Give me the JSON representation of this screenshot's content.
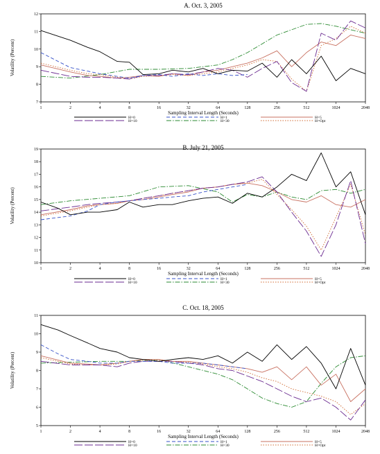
{
  "chart_data": [
    {
      "type": "line",
      "title": "A. Oct. 3, 2005",
      "xlabel": "Sampling Interval Length (Seconds)",
      "ylabel": "Volatility (Percent)",
      "x_scale": "log2",
      "xlim": [
        1,
        2048
      ],
      "ylim": [
        7,
        12
      ],
      "xticks": [
        "1",
        "2",
        "4",
        "8",
        "16",
        "32",
        "64",
        "128",
        "256",
        "512",
        "1024",
        "2048"
      ],
      "yticks": [
        "7",
        "8",
        "9",
        "10",
        "11",
        "12"
      ],
      "series": [
        {
          "name": "H=0",
          "color": "#000000",
          "dash": "",
          "x": [
            1,
            2,
            3,
            4,
            6,
            8,
            11,
            16,
            22,
            32,
            45,
            64,
            90,
            128,
            181,
            256,
            362,
            512,
            724,
            1024,
            1448,
            2048
          ],
          "y": [
            11.05,
            10.5,
            10.1,
            9.85,
            9.3,
            9.25,
            8.55,
            8.6,
            8.8,
            8.7,
            8.9,
            8.6,
            8.8,
            8.75,
            9.2,
            8.4,
            9.4,
            8.6,
            9.6,
            8.2,
            8.9,
            8.6
          ]
        },
        {
          "name": "H=1",
          "color": "#3550c8",
          "dash": "5,3",
          "x": [
            1,
            1.5,
            2,
            3,
            4,
            6,
            8,
            11,
            16,
            22,
            32,
            45,
            64,
            90,
            128
          ],
          "y": [
            9.8,
            9.3,
            8.95,
            8.75,
            8.6,
            8.45,
            8.35,
            8.5,
            8.55,
            8.45,
            8.6,
            8.5,
            8.6,
            8.5,
            8.55
          ]
        },
        {
          "name": "H=5",
          "color": "#c87060",
          "dash": "",
          "x": [
            1,
            2,
            3,
            4,
            6,
            8,
            11,
            16,
            22,
            32,
            45,
            64,
            90,
            128,
            181,
            256,
            362,
            512,
            724,
            1024,
            1448,
            2048
          ],
          "y": [
            9.1,
            8.7,
            8.5,
            8.45,
            8.35,
            8.4,
            8.5,
            8.45,
            8.6,
            8.5,
            8.7,
            8.8,
            9.0,
            9.2,
            9.5,
            9.9,
            9.0,
            9.8,
            10.4,
            10.2,
            10.8,
            10.6
          ]
        },
        {
          "name": "H=10",
          "color": "#6a2a90",
          "dash": "12,3",
          "x": [
            1,
            2,
            3,
            4,
            6,
            8,
            11,
            16,
            22,
            32,
            45,
            64,
            90,
            128,
            181,
            256,
            362,
            512,
            724,
            1024,
            1448,
            2048
          ],
          "y": [
            8.8,
            8.45,
            8.4,
            8.4,
            8.35,
            8.3,
            8.5,
            8.5,
            8.6,
            8.55,
            8.7,
            8.9,
            8.8,
            8.4,
            8.9,
            9.3,
            8.1,
            7.6,
            10.9,
            10.5,
            11.6,
            11.2
          ]
        },
        {
          "name": "H=30",
          "color": "#2a8a30",
          "dash": "7,2,1.5,2",
          "x": [
            1,
            2,
            4,
            8,
            16,
            32,
            64,
            90,
            128,
            181,
            256,
            362,
            512,
            724,
            1024,
            1448,
            2048
          ],
          "y": [
            8.45,
            8.35,
            8.55,
            8.85,
            8.85,
            8.9,
            9.1,
            9.4,
            9.8,
            10.3,
            10.8,
            11.1,
            11.4,
            11.45,
            11.3,
            11.1,
            10.9
          ]
        },
        {
          "name": "H=Opt",
          "color": "#d06a30",
          "dash": "1.5,2",
          "x": [
            1,
            2,
            3,
            4,
            6,
            8,
            11,
            16,
            22,
            32,
            45,
            64,
            90,
            128,
            181,
            256,
            362,
            512,
            724,
            1024,
            1448,
            2048
          ],
          "y": [
            9.2,
            8.8,
            8.6,
            8.55,
            8.4,
            8.3,
            8.45,
            8.5,
            8.55,
            8.5,
            8.6,
            8.7,
            8.9,
            9.1,
            9.4,
            9.3,
            8.3,
            7.6,
            10.2,
            10.6,
            11.3,
            10.9
          ]
        }
      ]
    },
    {
      "type": "line",
      "title": "B. July 21, 2005",
      "xlabel": "Sampling Interval Length (Seconds)",
      "ylabel": "Volatility (Percent)",
      "x_scale": "log2",
      "xlim": [
        1,
        2048
      ],
      "ylim": [
        10,
        19
      ],
      "xticks": [
        "1",
        "2",
        "4",
        "8",
        "16",
        "32",
        "64",
        "128",
        "256",
        "512",
        "1024",
        "2048"
      ],
      "yticks": [
        "10",
        "11",
        "12",
        "13",
        "14",
        "15",
        "16",
        "17",
        "18",
        "19"
      ],
      "series": [
        {
          "name": "H=0",
          "color": "#000000",
          "dash": "",
          "x": [
            1,
            1.5,
            2,
            3,
            4,
            6,
            8,
            11,
            16,
            22,
            32,
            45,
            64,
            90,
            128,
            181,
            256,
            362,
            512,
            724,
            1024,
            1448,
            2048
          ],
          "y": [
            14.8,
            14.3,
            13.8,
            14.0,
            14.0,
            14.2,
            14.8,
            14.4,
            14.6,
            14.6,
            14.9,
            15.1,
            15.2,
            14.7,
            15.5,
            15.2,
            16.0,
            17.0,
            16.5,
            18.7,
            16.0,
            17.2,
            13.8
          ]
        },
        {
          "name": "H=1",
          "color": "#3550c8",
          "dash": "5,3",
          "x": [
            1,
            2,
            3,
            4,
            6,
            8,
            11,
            16,
            22,
            32,
            45,
            64,
            90,
            128
          ],
          "y": [
            13.4,
            13.7,
            14.1,
            14.6,
            14.8,
            14.9,
            15.0,
            15.1,
            15.2,
            15.3,
            15.6,
            15.8,
            16.0,
            16.2
          ]
        },
        {
          "name": "H=5",
          "color": "#c87060",
          "dash": "",
          "x": [
            1,
            2,
            3,
            4,
            6,
            8,
            11,
            16,
            22,
            32,
            45,
            64,
            90,
            128,
            181,
            256,
            362,
            512,
            724,
            1024,
            1448,
            2048
          ],
          "y": [
            13.8,
            14.2,
            14.5,
            14.6,
            14.7,
            14.9,
            15.0,
            15.2,
            15.4,
            15.6,
            15.9,
            16.0,
            16.2,
            16.3,
            16.1,
            15.6,
            15.0,
            14.8,
            15.3,
            14.6,
            14.4,
            15.0
          ]
        },
        {
          "name": "H=10",
          "color": "#6a2a90",
          "dash": "12,3",
          "x": [
            1,
            2,
            3,
            4,
            6,
            8,
            11,
            16,
            22,
            32,
            45,
            64,
            90,
            128,
            181,
            256,
            362,
            512,
            724,
            1024,
            1448,
            2048
          ],
          "y": [
            14.1,
            14.4,
            14.6,
            14.7,
            14.8,
            14.9,
            15.1,
            15.3,
            15.5,
            15.7,
            15.9,
            16.0,
            16.2,
            16.4,
            16.8,
            15.6,
            14.0,
            12.5,
            10.5,
            13.0,
            16.5,
            11.5
          ]
        },
        {
          "name": "H=30",
          "color": "#2a8a30",
          "dash": "7,2,1.5,2",
          "x": [
            1,
            2,
            4,
            8,
            16,
            32,
            64,
            90,
            128,
            181,
            256,
            362,
            512,
            724,
            1024,
            1448,
            2048
          ],
          "y": [
            14.6,
            14.9,
            15.1,
            15.3,
            16.0,
            16.1,
            15.6,
            14.8,
            15.4,
            15.2,
            15.6,
            15.2,
            15.0,
            15.7,
            15.8,
            15.5,
            15.8
          ]
        },
        {
          "name": "H=Opt",
          "color": "#d06a30",
          "dash": "1.5,2",
          "x": [
            1,
            2,
            3,
            4,
            6,
            8,
            11,
            16,
            22,
            32,
            45,
            64,
            90,
            128,
            181,
            256,
            362,
            512,
            724,
            1024,
            1448,
            2048
          ],
          "y": [
            13.7,
            14.1,
            14.4,
            14.6,
            14.7,
            14.9,
            15.1,
            15.3,
            15.5,
            15.7,
            15.9,
            16.0,
            16.2,
            16.3,
            16.6,
            15.4,
            14.2,
            12.9,
            11.0,
            13.6,
            16.2,
            12.2
          ]
        }
      ]
    },
    {
      "type": "line",
      "title": "C. Oct. 18, 2005",
      "xlabel": "Sampling Interval Length (Seconds)",
      "ylabel": "Volatility (Percent)",
      "x_scale": "log2",
      "xlim": [
        1,
        2048
      ],
      "ylim": [
        5,
        11
      ],
      "xticks": [
        "1",
        "2",
        "4",
        "8",
        "16",
        "32",
        "64",
        "128",
        "256",
        "512",
        "1024",
        "2048"
      ],
      "yticks": [
        "5",
        "6",
        "7",
        "8",
        "9",
        "10",
        "11"
      ],
      "series": [
        {
          "name": "H=0",
          "color": "#000000",
          "dash": "",
          "x": [
            1,
            1.5,
            2,
            3,
            4,
            6,
            8,
            11,
            16,
            22,
            32,
            45,
            64,
            90,
            128,
            181,
            256,
            362,
            512,
            724,
            1024,
            1448,
            2048
          ],
          "y": [
            10.5,
            10.2,
            9.9,
            9.5,
            9.2,
            9.0,
            8.7,
            8.6,
            8.5,
            8.6,
            8.7,
            8.6,
            8.8,
            8.4,
            9.0,
            8.5,
            9.4,
            8.6,
            9.3,
            8.4,
            7.0,
            9.2,
            7.2
          ]
        },
        {
          "name": "H=1",
          "color": "#3550c8",
          "dash": "5,3",
          "x": [
            1,
            1.5,
            2,
            3,
            4,
            6,
            8,
            11,
            16,
            22,
            32,
            45,
            64,
            90,
            128
          ],
          "y": [
            9.4,
            8.9,
            8.6,
            8.5,
            8.4,
            8.4,
            8.5,
            8.5,
            8.5,
            8.4,
            8.4,
            8.4,
            8.3,
            8.2,
            8.1
          ]
        },
        {
          "name": "H=5",
          "color": "#c87060",
          "dash": "",
          "x": [
            1,
            2,
            3,
            4,
            6,
            8,
            11,
            16,
            22,
            32,
            45,
            64,
            90,
            128,
            181,
            256,
            362,
            512,
            724,
            1024,
            1448,
            2048
          ],
          "y": [
            8.8,
            8.4,
            8.35,
            8.3,
            8.4,
            8.5,
            8.6,
            8.6,
            8.5,
            8.5,
            8.4,
            8.3,
            8.2,
            8.1,
            7.9,
            8.2,
            7.5,
            8.2,
            7.2,
            7.8,
            6.3,
            7.0
          ]
        },
        {
          "name": "H=10",
          "color": "#6a2a90",
          "dash": "12,3",
          "x": [
            1,
            2,
            3,
            4,
            6,
            8,
            11,
            16,
            22,
            32,
            45,
            64,
            90,
            128,
            181,
            256,
            362,
            512,
            724,
            1024,
            1448,
            2048
          ],
          "y": [
            8.5,
            8.3,
            8.3,
            8.3,
            8.2,
            8.4,
            8.5,
            8.5,
            8.5,
            8.4,
            8.3,
            8.1,
            8.0,
            7.7,
            7.4,
            7.0,
            6.6,
            6.3,
            6.5,
            6.0,
            5.3,
            6.4
          ]
        },
        {
          "name": "H=30",
          "color": "#2a8a30",
          "dash": "7,2,1.5,2",
          "x": [
            1,
            2,
            4,
            8,
            16,
            32,
            64,
            90,
            128,
            181,
            256,
            362,
            512,
            724,
            1024,
            1448,
            2048
          ],
          "y": [
            8.4,
            8.45,
            8.5,
            8.5,
            8.6,
            8.2,
            7.8,
            7.5,
            7.0,
            6.5,
            6.2,
            6.0,
            6.3,
            7.3,
            8.2,
            8.7,
            8.8
          ]
        },
        {
          "name": "H=Opt",
          "color": "#d06a30",
          "dash": "1.5,2",
          "x": [
            1,
            2,
            3,
            4,
            6,
            8,
            11,
            16,
            22,
            32,
            45,
            64,
            90,
            128,
            181,
            256,
            362,
            512,
            724,
            1024,
            1448,
            2048
          ],
          "y": [
            8.7,
            8.35,
            8.3,
            8.3,
            8.35,
            8.5,
            8.55,
            8.55,
            8.5,
            8.45,
            8.35,
            8.2,
            8.1,
            7.9,
            7.6,
            7.4,
            7.0,
            6.8,
            6.6,
            6.3,
            5.6,
            6.2
          ]
        }
      ]
    }
  ]
}
